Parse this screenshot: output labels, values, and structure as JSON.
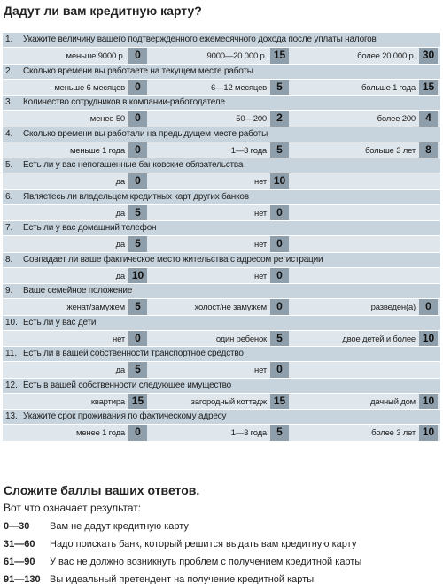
{
  "header": {
    "title": "Дадут ли вам кредитную карту?"
  },
  "questions": [
    {
      "number": "1.",
      "text": "Укажите величину вашего подтвержденного ежемесячного дохода после уплаты налогов",
      "options": [
        {
          "label": "меньше 9000 р.",
          "score": 0
        },
        {
          "label": "9000—20 000 р.",
          "score": 15
        },
        {
          "label": "более 20 000 р.",
          "score": 30
        }
      ]
    },
    {
      "number": "2.",
      "text": "Сколько времени вы работаете на текущем месте работы",
      "options": [
        {
          "label": "меньше 6 месяцев",
          "score": 0
        },
        {
          "label": "6—12 месяцев",
          "score": 5
        },
        {
          "label": "больше 1 года",
          "score": 15
        }
      ]
    },
    {
      "number": "3.",
      "text": "Количество сотрудников в компании-работодателе",
      "options": [
        {
          "label": "менее 50",
          "score": 0
        },
        {
          "label": "50—200",
          "score": 2
        },
        {
          "label": "более 200",
          "score": 4
        }
      ]
    },
    {
      "number": "4.",
      "text": "Сколько времени вы работали на предыдущем месте работы",
      "options": [
        {
          "label": "меньше 1 года",
          "score": 0
        },
        {
          "label": "1—3 года",
          "score": 5
        },
        {
          "label": "больше 3 лет",
          "score": 8
        }
      ]
    },
    {
      "number": "5.",
      "text": "Есть ли у вас непогашенные банковские обязательства",
      "options": [
        {
          "label": "да",
          "score": 0
        },
        {
          "label": "нет",
          "score": 10
        }
      ]
    },
    {
      "number": "6.",
      "text": "Являетесь ли владельцем кредитных карт других банков",
      "options": [
        {
          "label": "да",
          "score": 5
        },
        {
          "label": "нет",
          "score": 0
        }
      ]
    },
    {
      "number": "7.",
      "text": "Есть ли у вас домашний телефон",
      "options": [
        {
          "label": "да",
          "score": 5
        },
        {
          "label": "нет",
          "score": 0
        }
      ]
    },
    {
      "number": "8.",
      "text": "Совпадает ли ваше фактическое место жительства с адресом регистрации",
      "options": [
        {
          "label": "да",
          "score": 10
        },
        {
          "label": "нет",
          "score": 0
        }
      ]
    },
    {
      "number": "9.",
      "text": "Ваше семейное положение",
      "options": [
        {
          "label": "женат/замужем",
          "score": 5
        },
        {
          "label": "холост/не замужем",
          "score": 0
        },
        {
          "label": "разведен(а)",
          "score": 0
        }
      ]
    },
    {
      "number": "10.",
      "text": "Есть ли у вас дети",
      "options": [
        {
          "label": "нет",
          "score": 0
        },
        {
          "label": "один ребенок",
          "score": 5
        },
        {
          "label": "двое детей и более",
          "score": 10
        }
      ]
    },
    {
      "number": "11.",
      "text": "Есть ли в вашей собственности транспортное средство",
      "options": [
        {
          "label": "да",
          "score": 5
        },
        {
          "label": "нет",
          "score": 0
        }
      ]
    },
    {
      "number": "12.",
      "text": "Есть в вашей собственности следующее имущество",
      "options": [
        {
          "label": "квартира",
          "score": 15
        },
        {
          "label": "загородный коттедж",
          "score": 15
        },
        {
          "label": "дачный дом",
          "score": 10
        }
      ]
    },
    {
      "number": "13.",
      "text": "Укажите срок проживания по фактическому адресу",
      "options": [
        {
          "label": "менее 1 года",
          "score": 0
        },
        {
          "label": "1—3 года",
          "score": 5
        },
        {
          "label": "более 3 лет",
          "score": 10
        }
      ]
    }
  ],
  "summary": {
    "title": "Сложите баллы ваших ответов.",
    "subtitle": "Вот что означает результат:",
    "results": [
      {
        "range": "0—30",
        "text": "Вам не дадут кредитную карту"
      },
      {
        "range": "31—60",
        "text": "Надо поискать банк, который решится выдать вам кредитную карту"
      },
      {
        "range": "61—90",
        "text": "У вас не должно возникнуть проблем с получением кредитной карты"
      },
      {
        "range": "91—130",
        "text": "Вы идеальный претендент на получение кредитной карты"
      }
    ]
  }
}
